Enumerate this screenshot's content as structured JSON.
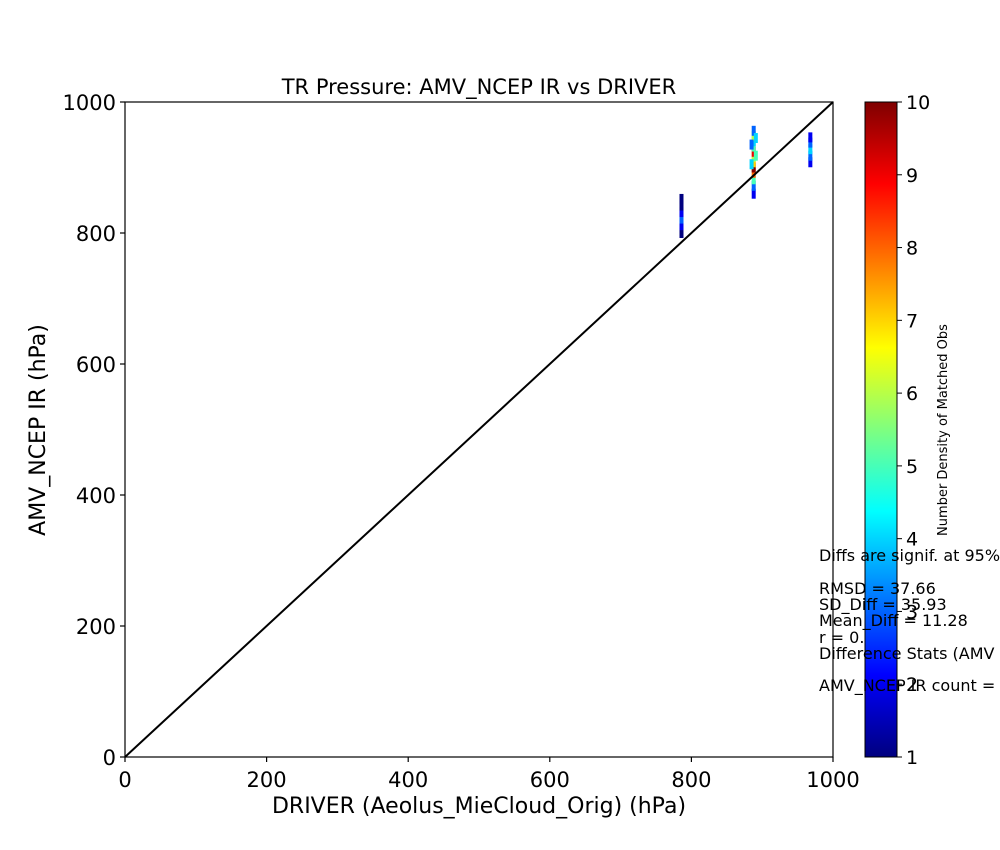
{
  "chart_data": {
    "type": "heatmap",
    "title": "TR Pressure: AMV_NCEP IR vs DRIVER",
    "xlabel": "DRIVER (Aeolus_MieCloud_Orig) (hPa)",
    "ylabel": "AMV_NCEP IR (hPa)",
    "xlim": [
      0,
      1000
    ],
    "ylim": [
      0,
      1000
    ],
    "xticks": [
      0,
      200,
      400,
      600,
      800,
      1000
    ],
    "yticks": [
      0,
      200,
      400,
      600,
      800,
      1000
    ],
    "xtick_labels": [
      "0",
      "200",
      "400",
      "600",
      "800",
      "1000"
    ],
    "ytick_labels": [
      "0",
      "200",
      "400",
      "600",
      "800",
      "1000"
    ],
    "grid": false,
    "reference_line": {
      "x": [
        0,
        1000
      ],
      "y": [
        0,
        1000
      ],
      "color": "#000000"
    },
    "density_points": [
      {
        "x": 786,
        "y": 800,
        "count": 1
      },
      {
        "x": 786,
        "y": 812,
        "count": 2
      },
      {
        "x": 786,
        "y": 822,
        "count": 3
      },
      {
        "x": 786,
        "y": 832,
        "count": 2
      },
      {
        "x": 786,
        "y": 842,
        "count": 1
      },
      {
        "x": 786,
        "y": 852,
        "count": 1
      },
      {
        "x": 888,
        "y": 860,
        "count": 2
      },
      {
        "x": 888,
        "y": 872,
        "count": 3
      },
      {
        "x": 888,
        "y": 882,
        "count": 5
      },
      {
        "x": 888,
        "y": 892,
        "count": 8
      },
      {
        "x": 888,
        "y": 900,
        "count": 10
      },
      {
        "x": 888,
        "y": 908,
        "count": 7
      },
      {
        "x": 888,
        "y": 916,
        "count": 6
      },
      {
        "x": 888,
        "y": 924,
        "count": 9
      },
      {
        "x": 888,
        "y": 932,
        "count": 5
      },
      {
        "x": 888,
        "y": 940,
        "count": 4
      },
      {
        "x": 888,
        "y": 948,
        "count": 6
      },
      {
        "x": 888,
        "y": 956,
        "count": 3
      },
      {
        "x": 885,
        "y": 905,
        "count": 4
      },
      {
        "x": 891,
        "y": 918,
        "count": 5
      },
      {
        "x": 885,
        "y": 935,
        "count": 3
      },
      {
        "x": 891,
        "y": 945,
        "count": 4
      },
      {
        "x": 968,
        "y": 908,
        "count": 2
      },
      {
        "x": 968,
        "y": 918,
        "count": 3
      },
      {
        "x": 968,
        "y": 928,
        "count": 4
      },
      {
        "x": 968,
        "y": 938,
        "count": 3
      },
      {
        "x": 968,
        "y": 946,
        "count": 2
      }
    ],
    "colorbar": {
      "label": "Number Density of Matched Obs",
      "min": 1,
      "max": 10,
      "ticks": [
        "1",
        "2",
        "3",
        "4",
        "5",
        "6",
        "7",
        "8",
        "9",
        "10"
      ],
      "colormap": [
        "#00007f",
        "#0000ff",
        "#007fff",
        "#00ffff",
        "#7fff7f",
        "#ffff00",
        "#ff7f00",
        "#ff0000",
        "#7f0000"
      ]
    },
    "annotations": [
      "Diffs are signif. at 95%",
      "RMSD = 37.66",
      "SD_Diff = 35.93",
      "Mean_Diff = 11.28",
      "r = 0.",
      "Difference Stats (AMV",
      "AMV_NCEP IR count ="
    ]
  }
}
